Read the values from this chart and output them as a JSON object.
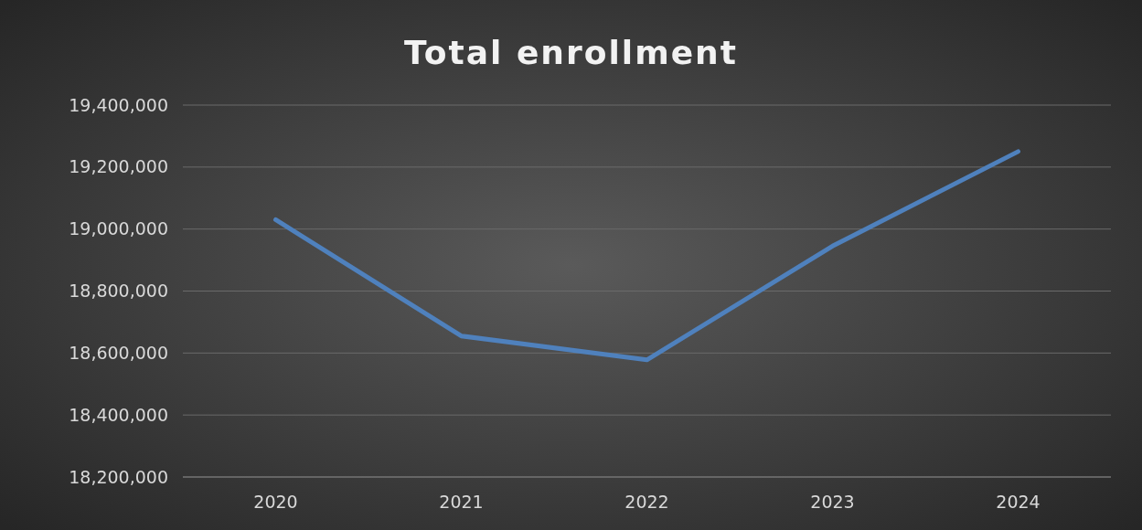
{
  "chart_data": {
    "type": "line",
    "title": "Total enrollment",
    "categories": [
      "2020",
      "2021",
      "2022",
      "2023",
      "2024"
    ],
    "series": [
      {
        "color": "#4f81bd",
        "values": [
          19030000,
          18655000,
          18578000,
          18945000,
          19250000
        ]
      }
    ],
    "ylim": [
      18200000,
      19400000
    ],
    "yticks": [
      {
        "value": 18200000,
        "label": "18,200,000"
      },
      {
        "value": 18400000,
        "label": "18,400,000"
      },
      {
        "value": 18600000,
        "label": "18,600,000"
      },
      {
        "value": 18800000,
        "label": "18,800,000"
      },
      {
        "value": 19000000,
        "label": "19,000,000"
      },
      {
        "value": 19200000,
        "label": "19,200,000"
      },
      {
        "value": 19400000,
        "label": "19,400,000"
      }
    ],
    "grid": "y",
    "marker": "none",
    "line_style": "solid"
  }
}
